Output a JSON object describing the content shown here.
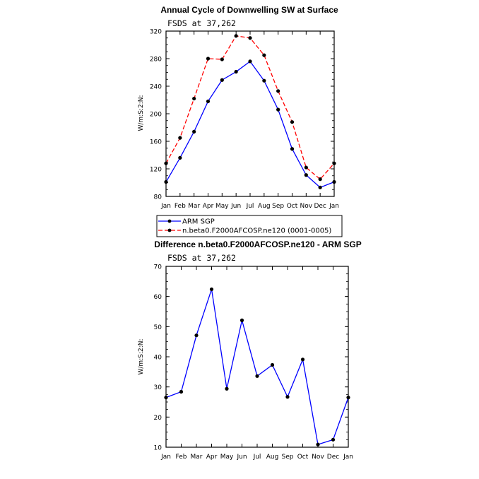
{
  "chart_data": [
    {
      "type": "line",
      "title": "Annual Cycle of Downwelling SW at Surface",
      "subtitle": "FSDS at 37,262",
      "xlabel": "",
      "ylabel": "W/m:S:2:N:",
      "categories": [
        "Jan",
        "Feb",
        "Mar",
        "Apr",
        "May",
        "Jun",
        "Jul",
        "Aug",
        "Sep",
        "Oct",
        "Nov",
        "Dec",
        "Jan"
      ],
      "ylim": [
        80,
        320
      ],
      "yticks": [
        80,
        120,
        160,
        200,
        240,
        280,
        320
      ],
      "series": [
        {
          "name": "ARM SGP",
          "color": "#0000ff",
          "dash": "solid",
          "values": [
            101,
            136,
            174,
            218,
            249,
            261,
            276,
            248,
            206,
            149,
            111,
            93,
            101
          ]
        },
        {
          "name": "n.beta0.F2000AFCOSP.ne120 (0001-0005)",
          "color": "#ff0000",
          "dash": "dashed",
          "values": [
            128,
            165,
            222,
            280,
            279,
            313,
            310,
            285,
            233,
            188,
            122,
            105,
            128
          ]
        }
      ],
      "legend": "bottom-left"
    },
    {
      "type": "line",
      "title": "Difference n.beta0.F2000AFCOSP.ne120 - ARM SGP",
      "subtitle": "FSDS at 37,262",
      "xlabel": "",
      "ylabel": "W/m:S:2:N:",
      "categories": [
        "Jan",
        "Feb",
        "Mar",
        "Apr",
        "May",
        "Jun",
        "Jul",
        "Aug",
        "Sep",
        "Oct",
        "Nov",
        "Dec",
        "Jan"
      ],
      "ylim": [
        10,
        70
      ],
      "yticks": [
        10,
        20,
        30,
        40,
        50,
        60,
        70
      ],
      "series": [
        {
          "name": "Difference",
          "color": "#0000ff",
          "dash": "solid",
          "values": [
            26.5,
            28.4,
            47.1,
            62.4,
            29.4,
            52.1,
            33.6,
            37.3,
            26.7,
            39.1,
            10.9,
            12.5,
            26.5
          ]
        }
      ]
    }
  ]
}
